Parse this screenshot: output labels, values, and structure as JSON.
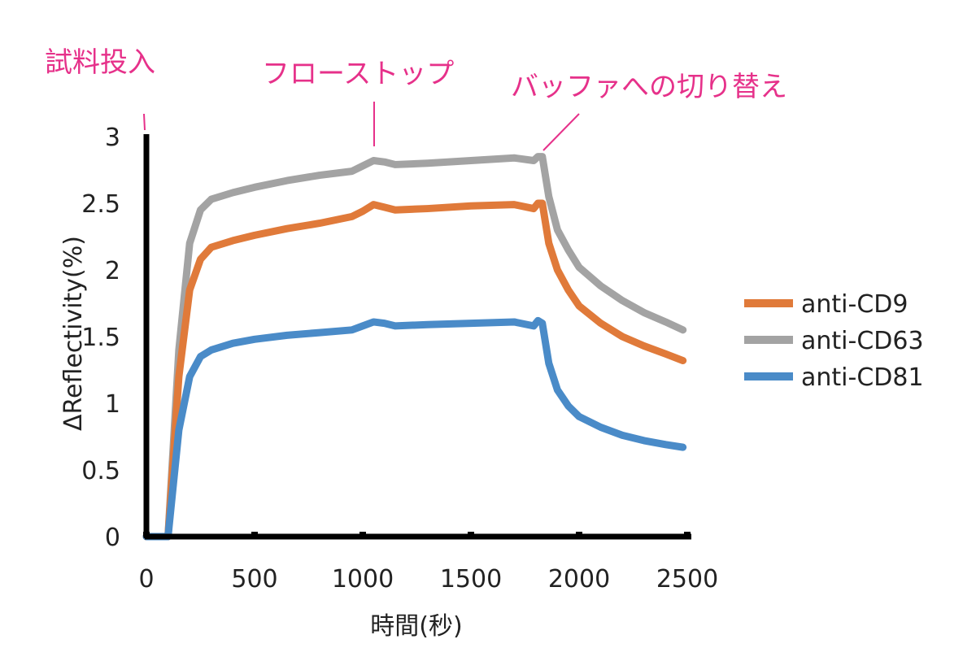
{
  "chart_data": {
    "type": "line",
    "title": "",
    "xlabel": "時間(秒)",
    "ylabel": "ΔReflectivity(%)",
    "xlim": [
      0,
      2500
    ],
    "ylim": [
      0,
      3
    ],
    "xticks": [
      "0",
      "500",
      "1000",
      "1500",
      "2000",
      "2500"
    ],
    "yticks": [
      "0",
      "0.5",
      "1",
      "1.5",
      "2",
      "2.5",
      "3"
    ],
    "grid": false,
    "legend_position": "right",
    "annotations": [
      {
        "text": "試料投入",
        "x": 0
      },
      {
        "text": "フローストップ",
        "x": 1060
      },
      {
        "text": "バッファへの切り替え",
        "x": 1830
      }
    ],
    "series": [
      {
        "name": "anti-CD9",
        "color": "#e07a3a",
        "x": [
          0,
          100,
          150,
          200,
          250,
          300,
          400,
          500,
          650,
          800,
          950,
          1000,
          1050,
          1100,
          1150,
          1300,
          1500,
          1700,
          1790,
          1810,
          1830,
          1860,
          1900,
          1950,
          2000,
          2100,
          2200,
          2300,
          2400,
          2480
        ],
        "y": [
          0,
          0,
          1.2,
          1.85,
          2.08,
          2.17,
          2.22,
          2.26,
          2.31,
          2.35,
          2.4,
          2.44,
          2.49,
          2.47,
          2.45,
          2.46,
          2.48,
          2.49,
          2.46,
          2.5,
          2.5,
          2.2,
          2.0,
          1.85,
          1.73,
          1.6,
          1.5,
          1.43,
          1.37,
          1.32
        ]
      },
      {
        "name": "anti-CD63",
        "color": "#a3a3a3",
        "x": [
          0,
          100,
          150,
          200,
          250,
          300,
          400,
          500,
          650,
          800,
          950,
          1000,
          1050,
          1100,
          1150,
          1300,
          1500,
          1700,
          1790,
          1810,
          1830,
          1860,
          1900,
          1950,
          2000,
          2100,
          2200,
          2300,
          2400,
          2480
        ],
        "y": [
          0,
          0,
          1.4,
          2.2,
          2.45,
          2.53,
          2.58,
          2.62,
          2.67,
          2.71,
          2.74,
          2.78,
          2.82,
          2.81,
          2.79,
          2.8,
          2.82,
          2.84,
          2.82,
          2.85,
          2.85,
          2.55,
          2.3,
          2.15,
          2.02,
          1.88,
          1.77,
          1.68,
          1.61,
          1.55
        ]
      },
      {
        "name": "anti-CD81",
        "color": "#4a8bc8",
        "x": [
          0,
          100,
          150,
          200,
          250,
          300,
          400,
          500,
          650,
          800,
          950,
          1000,
          1050,
          1100,
          1150,
          1300,
          1500,
          1700,
          1790,
          1810,
          1830,
          1860,
          1900,
          1950,
          2000,
          2100,
          2200,
          2300,
          2400,
          2480
        ],
        "y": [
          0,
          0,
          0.8,
          1.2,
          1.35,
          1.4,
          1.45,
          1.48,
          1.51,
          1.53,
          1.55,
          1.58,
          1.61,
          1.6,
          1.58,
          1.59,
          1.6,
          1.61,
          1.58,
          1.62,
          1.6,
          1.3,
          1.1,
          0.98,
          0.9,
          0.82,
          0.76,
          0.72,
          0.69,
          0.67
        ]
      }
    ]
  }
}
